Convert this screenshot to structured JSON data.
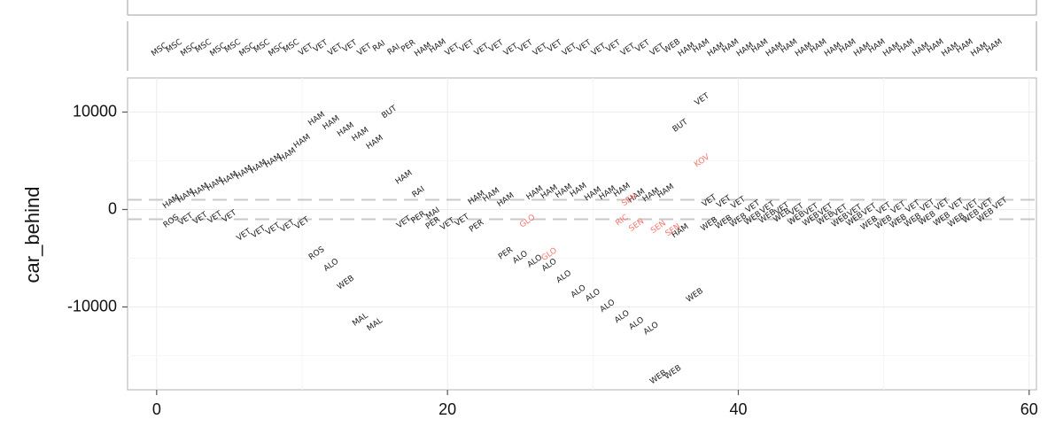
{
  "chart_data": {
    "type": "scatter",
    "ylabel": "car_behind",
    "xlabel": "",
    "xlim": [
      -2,
      60.5
    ],
    "ylim": [
      -18500,
      13500
    ],
    "x_ticks": [
      0,
      20,
      40,
      60
    ],
    "x_tick_labels": [
      "0",
      "20",
      "40",
      "60"
    ],
    "y_ticks": [
      10000,
      0,
      -10000
    ],
    "y_tick_labels": [
      "10000",
      "0",
      "-10000"
    ],
    "grid": true,
    "reference_lines": [
      1000,
      -1000
    ],
    "highlight_color": "#f8766d",
    "normal_color": "#222222",
    "strip_labels": [
      "MSC",
      "MSC",
      "MSC",
      "MSC",
      "MSC",
      "MSC",
      "MSC",
      "MSC",
      "MSC",
      "MSC",
      "VET",
      "VET",
      "VET",
      "VET",
      "VET",
      "RAI",
      "RAI",
      "PER",
      "HAM",
      "HAM",
      "VET",
      "VET",
      "VET",
      "VET",
      "VET",
      "VET",
      "VET",
      "VET",
      "VET",
      "VET",
      "VET",
      "VET",
      "VET",
      "VET",
      "VET",
      "WEB",
      "HAM",
      "HAM",
      "HAM",
      "HAM",
      "HAM",
      "HAM",
      "HAM",
      "HAM",
      "HAM",
      "HAM",
      "HAM",
      "HAM",
      "HAM",
      "HAM",
      "HAM",
      "HAM",
      "HAM",
      "HAM",
      "HAM",
      "HAM",
      "HAM",
      "HAM"
    ],
    "labels": [
      {
        "x": 1,
        "y": 800,
        "t": "HAM"
      },
      {
        "x": 2,
        "y": 1400,
        "t": "HAM"
      },
      {
        "x": 3,
        "y": 2000,
        "t": "HAM"
      },
      {
        "x": 4,
        "y": 2600,
        "t": "HAM"
      },
      {
        "x": 5,
        "y": 3200,
        "t": "HAM"
      },
      {
        "x": 6,
        "y": 3800,
        "t": "HAM"
      },
      {
        "x": 7,
        "y": 4400,
        "t": "HAM"
      },
      {
        "x": 8,
        "y": 5000,
        "t": "HAM"
      },
      {
        "x": 9,
        "y": 5600,
        "t": "HAM"
      },
      {
        "x": 10,
        "y": 7000,
        "t": "HAM"
      },
      {
        "x": 11,
        "y": 9300,
        "t": "HAM"
      },
      {
        "x": 12,
        "y": 8900,
        "t": "HAM"
      },
      {
        "x": 13,
        "y": 8200,
        "t": "HAM"
      },
      {
        "x": 14,
        "y": 7700,
        "t": "HAM"
      },
      {
        "x": 15,
        "y": 6900,
        "t": "HAM"
      },
      {
        "x": 16,
        "y": 10000,
        "t": "BUT"
      },
      {
        "x": 1,
        "y": -1200,
        "t": "ROS"
      },
      {
        "x": 2,
        "y": -1000,
        "t": "VET"
      },
      {
        "x": 3,
        "y": -900,
        "t": "VET"
      },
      {
        "x": 4,
        "y": -800,
        "t": "VET"
      },
      {
        "x": 5,
        "y": -700,
        "t": "VET"
      },
      {
        "x": 6,
        "y": -2600,
        "t": "VET"
      },
      {
        "x": 7,
        "y": -2300,
        "t": "VET"
      },
      {
        "x": 8,
        "y": -2000,
        "t": "VET"
      },
      {
        "x": 9,
        "y": -1700,
        "t": "VET"
      },
      {
        "x": 10,
        "y": -1400,
        "t": "VET"
      },
      {
        "x": 11,
        "y": -4500,
        "t": "ROS"
      },
      {
        "x": 12,
        "y": -5700,
        "t": "ALO"
      },
      {
        "x": 13,
        "y": -7500,
        "t": "WEB"
      },
      {
        "x": 14,
        "y": -11300,
        "t": "MAL"
      },
      {
        "x": 15,
        "y": -11800,
        "t": "MAL"
      },
      {
        "x": 17,
        "y": 3300,
        "t": "HAM"
      },
      {
        "x": 18,
        "y": 1800,
        "t": "RAI"
      },
      {
        "x": 17,
        "y": -1300,
        "t": "VET"
      },
      {
        "x": 18,
        "y": -800,
        "t": "PER"
      },
      {
        "x": 19,
        "y": -1400,
        "t": "PER"
      },
      {
        "x": 19,
        "y": -400,
        "t": "MAI"
      },
      {
        "x": 20,
        "y": -1500,
        "t": "VET"
      },
      {
        "x": 21,
        "y": -1100,
        "t": "VET"
      },
      {
        "x": 22,
        "y": -1700,
        "t": "PER"
      },
      {
        "x": 22,
        "y": 1200,
        "t": "HAM"
      },
      {
        "x": 23,
        "y": 1500,
        "t": "HAM"
      },
      {
        "x": 24,
        "y": 1000,
        "t": "HAM"
      },
      {
        "x": 24,
        "y": -4500,
        "t": "PER"
      },
      {
        "x": 25,
        "y": -4900,
        "t": "ALO"
      },
      {
        "x": 26,
        "y": -5300,
        "t": "ALO"
      },
      {
        "x": 27,
        "y": -5700,
        "t": "ALO"
      },
      {
        "x": 28,
        "y": -6900,
        "t": "ALO"
      },
      {
        "x": 29,
        "y": -8400,
        "t": "ALO"
      },
      {
        "x": 30,
        "y": -8800,
        "t": "ALO"
      },
      {
        "x": 31,
        "y": -9900,
        "t": "ALO"
      },
      {
        "x": 32,
        "y": -11000,
        "t": "ALO"
      },
      {
        "x": 33,
        "y": -11700,
        "t": "ALO"
      },
      {
        "x": 34,
        "y": -12200,
        "t": "ALO"
      },
      {
        "x": 26,
        "y": 1700,
        "t": "HAM"
      },
      {
        "x": 27,
        "y": 1800,
        "t": "HAM"
      },
      {
        "x": 28,
        "y": 1900,
        "t": "HAM"
      },
      {
        "x": 29,
        "y": 2000,
        "t": "HAM"
      },
      {
        "x": 30,
        "y": 1600,
        "t": "HAM"
      },
      {
        "x": 31,
        "y": 1700,
        "t": "HAM"
      },
      {
        "x": 32,
        "y": 2000,
        "t": "HAM"
      },
      {
        "x": 33,
        "y": 1400,
        "t": "HAM"
      },
      {
        "x": 34,
        "y": 1500,
        "t": "HAM"
      },
      {
        "x": 35,
        "y": 1900,
        "t": "HAM"
      },
      {
        "x": 25.5,
        "y": -1200,
        "t": "GLO",
        "h": true
      },
      {
        "x": 27,
        "y": -4600,
        "t": "GLO",
        "h": true
      },
      {
        "x": 32.5,
        "y": 1000,
        "t": "SEN",
        "h": true
      },
      {
        "x": 32,
        "y": -1100,
        "t": "RIC",
        "h": true
      },
      {
        "x": 33,
        "y": -1600,
        "t": "SEN",
        "h": true
      },
      {
        "x": 34.5,
        "y": -1800,
        "t": "SEN",
        "h": true
      },
      {
        "x": 35.5,
        "y": -2100,
        "t": "SEN",
        "h": true
      },
      {
        "x": 37.5,
        "y": 5000,
        "t": "KOV",
        "h": true
      },
      {
        "x": 36,
        "y": 8600,
        "t": "BUT"
      },
      {
        "x": 37.5,
        "y": 11300,
        "t": "VET"
      },
      {
        "x": 36,
        "y": -2200,
        "t": "HAM"
      },
      {
        "x": 37,
        "y": -8800,
        "t": "WEB"
      },
      {
        "x": 34.5,
        "y": -17200,
        "t": "WEB"
      },
      {
        "x": 35.5,
        "y": -16700,
        "t": "WEB"
      },
      {
        "x": 38,
        "y": 900,
        "t": "VET"
      },
      {
        "x": 39,
        "y": 800,
        "t": "VET"
      },
      {
        "x": 40,
        "y": 700,
        "t": "VET"
      },
      {
        "x": 41,
        "y": 300,
        "t": "VET"
      },
      {
        "x": 42,
        "y": 200,
        "t": "VET"
      },
      {
        "x": 43,
        "y": 100,
        "t": "VET"
      },
      {
        "x": 44,
        "y": 0,
        "t": "VET"
      },
      {
        "x": 45,
        "y": 0,
        "t": "VET"
      },
      {
        "x": 46,
        "y": 0,
        "t": "VET"
      },
      {
        "x": 47,
        "y": -100,
        "t": "VET"
      },
      {
        "x": 48,
        "y": -100,
        "t": "VET"
      },
      {
        "x": 49,
        "y": 0,
        "t": "VET"
      },
      {
        "x": 50,
        "y": 100,
        "t": "VET"
      },
      {
        "x": 51,
        "y": 200,
        "t": "VET"
      },
      {
        "x": 52,
        "y": 300,
        "t": "VET"
      },
      {
        "x": 53,
        "y": 400,
        "t": "VET"
      },
      {
        "x": 54,
        "y": 500,
        "t": "VET"
      },
      {
        "x": 55,
        "y": 500,
        "t": "VET"
      },
      {
        "x": 56,
        "y": 400,
        "t": "VET"
      },
      {
        "x": 57,
        "y": 500,
        "t": "VET"
      },
      {
        "x": 58,
        "y": 600,
        "t": "VET"
      },
      {
        "x": 38,
        "y": -1500,
        "t": "WEB"
      },
      {
        "x": 39,
        "y": -1300,
        "t": "WEB"
      },
      {
        "x": 40,
        "y": -1100,
        "t": "WEB"
      },
      {
        "x": 41,
        "y": -900,
        "t": "WEB"
      },
      {
        "x": 42,
        "y": -700,
        "t": "WEB"
      },
      {
        "x": 43,
        "y": -600,
        "t": "WEB"
      },
      {
        "x": 44,
        "y": -900,
        "t": "WEB"
      },
      {
        "x": 45,
        "y": -1000,
        "t": "WEB"
      },
      {
        "x": 46,
        "y": -900,
        "t": "WEB"
      },
      {
        "x": 47,
        "y": -1100,
        "t": "WEB"
      },
      {
        "x": 48,
        "y": -1000,
        "t": "WEB"
      },
      {
        "x": 49,
        "y": -1400,
        "t": "WEB"
      },
      {
        "x": 50,
        "y": -1300,
        "t": "WEB"
      },
      {
        "x": 51,
        "y": -1200,
        "t": "WEB"
      },
      {
        "x": 52,
        "y": -1100,
        "t": "WEB"
      },
      {
        "x": 53,
        "y": -900,
        "t": "WEB"
      },
      {
        "x": 54,
        "y": -1000,
        "t": "WEB"
      },
      {
        "x": 55,
        "y": -1100,
        "t": "WEB"
      },
      {
        "x": 56,
        "y": -700,
        "t": "WEB"
      },
      {
        "x": 57,
        "y": -600,
        "t": "WEB"
      }
    ]
  }
}
